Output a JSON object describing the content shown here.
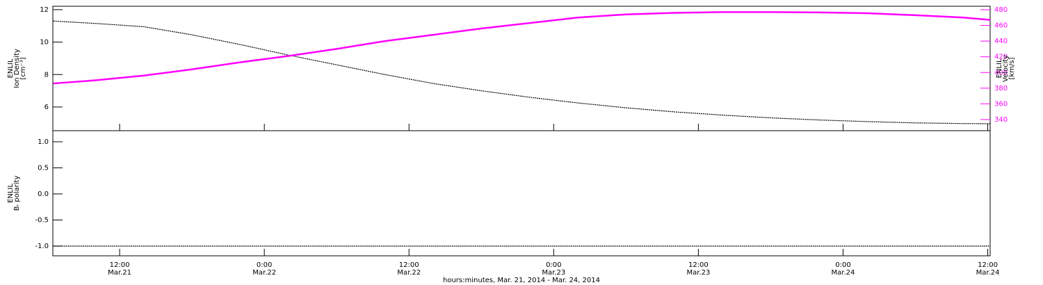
{
  "chart_data": [
    {
      "type": "line",
      "ylabel": [
        "ENLIL",
        "Ion Density",
        "[cm⁻³]"
      ],
      "y2label": [
        "ENLIL",
        "Velocity",
        "[km/s]"
      ],
      "x": [
        6.5,
        10,
        14,
        18,
        22,
        26,
        30,
        34,
        38,
        42,
        46,
        50,
        54,
        58,
        62,
        66,
        70,
        74,
        78,
        82,
        84.2
      ],
      "xlim": [
        6.46,
        84.2
      ],
      "ylim": [
        4.54,
        12.21
      ],
      "yticks": [
        6,
        8,
        10,
        12
      ],
      "y2lim": [
        325.8,
        484.4
      ],
      "y2ticks": [
        340,
        360,
        380,
        400,
        420,
        440,
        460,
        480
      ],
      "y2color": "#ff00ff",
      "series": [
        {
          "name": "Ion Density",
          "color": "#000000",
          "values": [
            11.3,
            11.15,
            10.95,
            10.45,
            9.85,
            9.2,
            8.6,
            8.0,
            7.45,
            7.0,
            6.6,
            6.25,
            5.95,
            5.7,
            5.5,
            5.33,
            5.2,
            5.1,
            5.02,
            4.98,
            4.97
          ]
        },
        {
          "name": "Velocity",
          "color": "#ff00ff",
          "axis": "y2",
          "values": [
            386,
            390,
            396,
            404,
            413,
            421,
            430,
            440,
            448,
            456,
            463,
            470,
            474,
            476,
            477,
            477,
            476.5,
            475.5,
            473,
            470,
            467
          ]
        }
      ]
    },
    {
      "type": "line",
      "ylabel": [
        "ENLIL",
        "Bᵣ polarity"
      ],
      "xlabel": "hours:minutes, Mar. 21, 2014 - Mar. 24, 2014",
      "x": [
        6.5,
        10,
        14,
        18,
        22,
        26,
        30,
        34,
        38,
        42,
        46,
        50,
        54,
        58,
        62,
        66,
        70,
        74,
        78,
        82,
        84.2
      ],
      "xlim": [
        6.46,
        84.2
      ],
      "xticks": [
        {
          "value": 12,
          "label": "12:00",
          "date": "Mar.21"
        },
        {
          "value": 24,
          "label": "0:00",
          "date": "Mar.22"
        },
        {
          "value": 36,
          "label": "12:00",
          "date": "Mar.22"
        },
        {
          "value": 48,
          "label": "0:00",
          "date": "Mar.23"
        },
        {
          "value": 60,
          "label": "12:00",
          "date": "Mar.23"
        },
        {
          "value": 72,
          "label": "0:00",
          "date": "Mar.24"
        },
        {
          "value": 84,
          "label": "12:00",
          "date": "Mar.24"
        }
      ],
      "ylim": [
        -1.187,
        1.213
      ],
      "yticks": [
        {
          "value": 1,
          "label": "1.0"
        },
        {
          "value": 0.5,
          "label": "0.5"
        },
        {
          "value": 0,
          "label": "0.0"
        },
        {
          "value": -0.5,
          "label": "-0.5"
        },
        {
          "value": -1,
          "label": "-1.0"
        }
      ],
      "series": [
        {
          "name": "Br polarity",
          "color": "#000000",
          "values": [
            -1,
            -1,
            -1,
            -1,
            -1,
            -1,
            -1,
            -1,
            -1,
            -1,
            -1,
            -1,
            -1,
            -1,
            -1,
            -1,
            -1,
            -1,
            -1,
            -1,
            -1
          ]
        }
      ]
    }
  ]
}
